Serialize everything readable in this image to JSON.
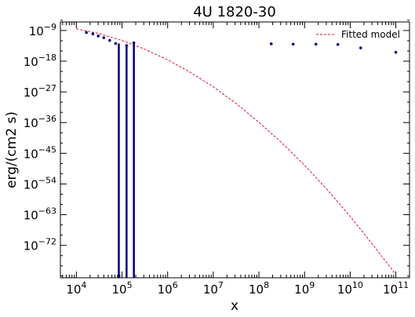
{
  "chart_data": {
    "type": "scatter",
    "title": "4U 1820-30",
    "xlabel": "x",
    "ylabel": "erg/(cm2 s)",
    "xscale": "log",
    "yscale": "log",
    "xlim_exp": [
      3.65,
      11.3
    ],
    "ylim_exp": [
      -81.5,
      -6.5
    ],
    "xticks_exp": [
      4,
      5,
      6,
      7,
      8,
      9,
      10,
      11
    ],
    "yticks_exp": [
      -9,
      -18,
      -27,
      -36,
      -45,
      -54,
      -63,
      -72
    ],
    "grid": false,
    "legend": {
      "position": "top-right",
      "entries": [
        "Fitted model"
      ]
    },
    "series": [
      {
        "name": "data",
        "color": "#00007f",
        "points_exp": [
          [
            4.22,
            -9.6
          ],
          [
            4.36,
            -10.0
          ],
          [
            4.48,
            -10.6
          ],
          [
            4.6,
            -11.1
          ],
          [
            4.73,
            -11.9
          ],
          [
            4.86,
            -12.8
          ],
          [
            5.1,
            -13.4
          ],
          [
            5.26,
            -12.6
          ],
          [
            8.27,
            -12.9
          ],
          [
            8.75,
            -13.0
          ],
          [
            9.25,
            -13.0
          ],
          [
            9.73,
            -13.1
          ],
          [
            10.23,
            -14.1
          ],
          [
            11.0,
            -15.4
          ]
        ],
        "vertical_bars_x_exp": [
          4.93,
          5.1,
          5.26
        ]
      },
      {
        "name": "Fitted model",
        "color": "#dd1133",
        "style": "dashed",
        "curve_exp": [
          [
            4.0,
            -8.5
          ],
          [
            4.5,
            -9.9
          ],
          [
            5.0,
            -11.9
          ],
          [
            5.5,
            -14.5
          ],
          [
            6.0,
            -17.6
          ],
          [
            6.5,
            -21.3
          ],
          [
            7.0,
            -25.5
          ],
          [
            7.5,
            -30.4
          ],
          [
            8.0,
            -35.9
          ],
          [
            8.5,
            -41.9
          ],
          [
            9.0,
            -48.5
          ],
          [
            9.5,
            -55.7
          ],
          [
            10.0,
            -63.5
          ],
          [
            10.5,
            -71.9
          ],
          [
            11.0,
            -80.5
          ]
        ]
      }
    ]
  }
}
